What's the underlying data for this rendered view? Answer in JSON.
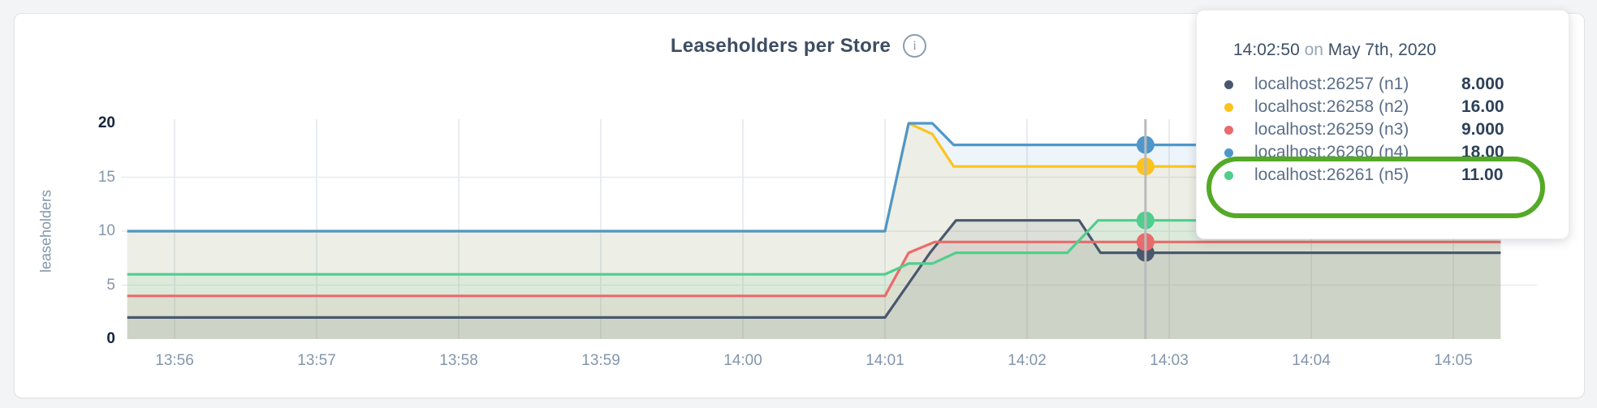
{
  "header": {
    "title": "Leaseholders per Store"
  },
  "icons": {
    "info_glyph": "i"
  },
  "chart_data": {
    "type": "area",
    "title": "Leaseholders per Store",
    "ylabel": "leaseholders",
    "ylim": [
      0,
      20
    ],
    "grid": true,
    "legend_position": "hover-tooltip",
    "x_window": {
      "start": "13:55:40",
      "end": "14:05:20"
    },
    "y_ticks": [
      {
        "value": 0,
        "label": "0",
        "emphasis": true
      },
      {
        "value": 5,
        "label": "5",
        "emphasis": false
      },
      {
        "value": 10,
        "label": "10",
        "emphasis": false
      },
      {
        "value": 15,
        "label": "15",
        "emphasis": false
      },
      {
        "value": 20,
        "label": "20",
        "emphasis": true
      }
    ],
    "x_ticks": [
      {
        "label": "13:56",
        "t": 20
      },
      {
        "label": "13:57",
        "t": 80
      },
      {
        "label": "13:58",
        "t": 140
      },
      {
        "label": "13:59",
        "t": 200
      },
      {
        "label": "14:00",
        "t": 260
      },
      {
        "label": "14:01",
        "t": 320
      },
      {
        "label": "14:02",
        "t": 380
      },
      {
        "label": "14:03",
        "t": 440
      },
      {
        "label": "14:04",
        "t": 500
      },
      {
        "label": "14:05",
        "t": 560
      }
    ],
    "series": [
      {
        "id": "n1",
        "name": "localhost:26257 (n1)",
        "color": "#49586e",
        "points": [
          [
            0,
            2
          ],
          [
            320,
            2
          ],
          [
            339,
            8
          ],
          [
            350,
            11
          ],
          [
            402,
            11
          ],
          [
            411,
            8
          ],
          [
            580,
            8
          ]
        ]
      },
      {
        "id": "n2",
        "name": "localhost:26258 (n2)",
        "color": "#fdc31d",
        "points": [
          [
            0,
            10
          ],
          [
            320,
            10
          ],
          [
            330,
            20
          ],
          [
            340,
            19
          ],
          [
            349,
            16
          ],
          [
            580,
            16
          ]
        ]
      },
      {
        "id": "n3",
        "name": "localhost:26259 (n3)",
        "color": "#e96b6b",
        "points": [
          [
            0,
            4
          ],
          [
            320,
            4
          ],
          [
            330,
            8
          ],
          [
            341,
            9
          ],
          [
            580,
            9
          ]
        ]
      },
      {
        "id": "n4",
        "name": "localhost:26260 (n4)",
        "color": "#4f97cb",
        "points": [
          [
            0,
            10
          ],
          [
            320,
            10
          ],
          [
            330,
            20
          ],
          [
            340,
            20
          ],
          [
            349,
            18
          ],
          [
            580,
            18
          ]
        ]
      },
      {
        "id": "n5",
        "name": "localhost:26261 (n5)",
        "color": "#4fce8d",
        "points": [
          [
            0,
            6
          ],
          [
            320,
            6
          ],
          [
            330,
            7
          ],
          [
            340,
            7
          ],
          [
            350,
            8
          ],
          [
            397,
            8
          ],
          [
            410,
            11
          ],
          [
            580,
            11
          ]
        ]
      }
    ],
    "hover": {
      "t": 430,
      "time_label": "14:02:50",
      "line_color": "#b9babc",
      "values": {
        "n1": 8,
        "n2": 16,
        "n3": 9,
        "n4": 18,
        "n5": 11
      }
    }
  },
  "tooltip": {
    "time": "14:02:50",
    "connector": "on",
    "date": "May 7th, 2020",
    "rows": [
      {
        "series": "n1",
        "label": "localhost:26257 (n1)",
        "value": "8.000"
      },
      {
        "series": "n2",
        "label": "localhost:26258 (n2)",
        "value": "16.00"
      },
      {
        "series": "n3",
        "label": "localhost:26259 (n3)",
        "value": "9.000"
      },
      {
        "series": "n4",
        "label": "localhost:26260 (n4)",
        "value": "18.00"
      },
      {
        "series": "n5",
        "label": "localhost:26261 (n5)",
        "value": "11.00"
      }
    ],
    "annotation": {
      "shape": "rounded-circle",
      "color": "#54aa26",
      "circled_rows": [
        "n4",
        "n5"
      ]
    }
  }
}
